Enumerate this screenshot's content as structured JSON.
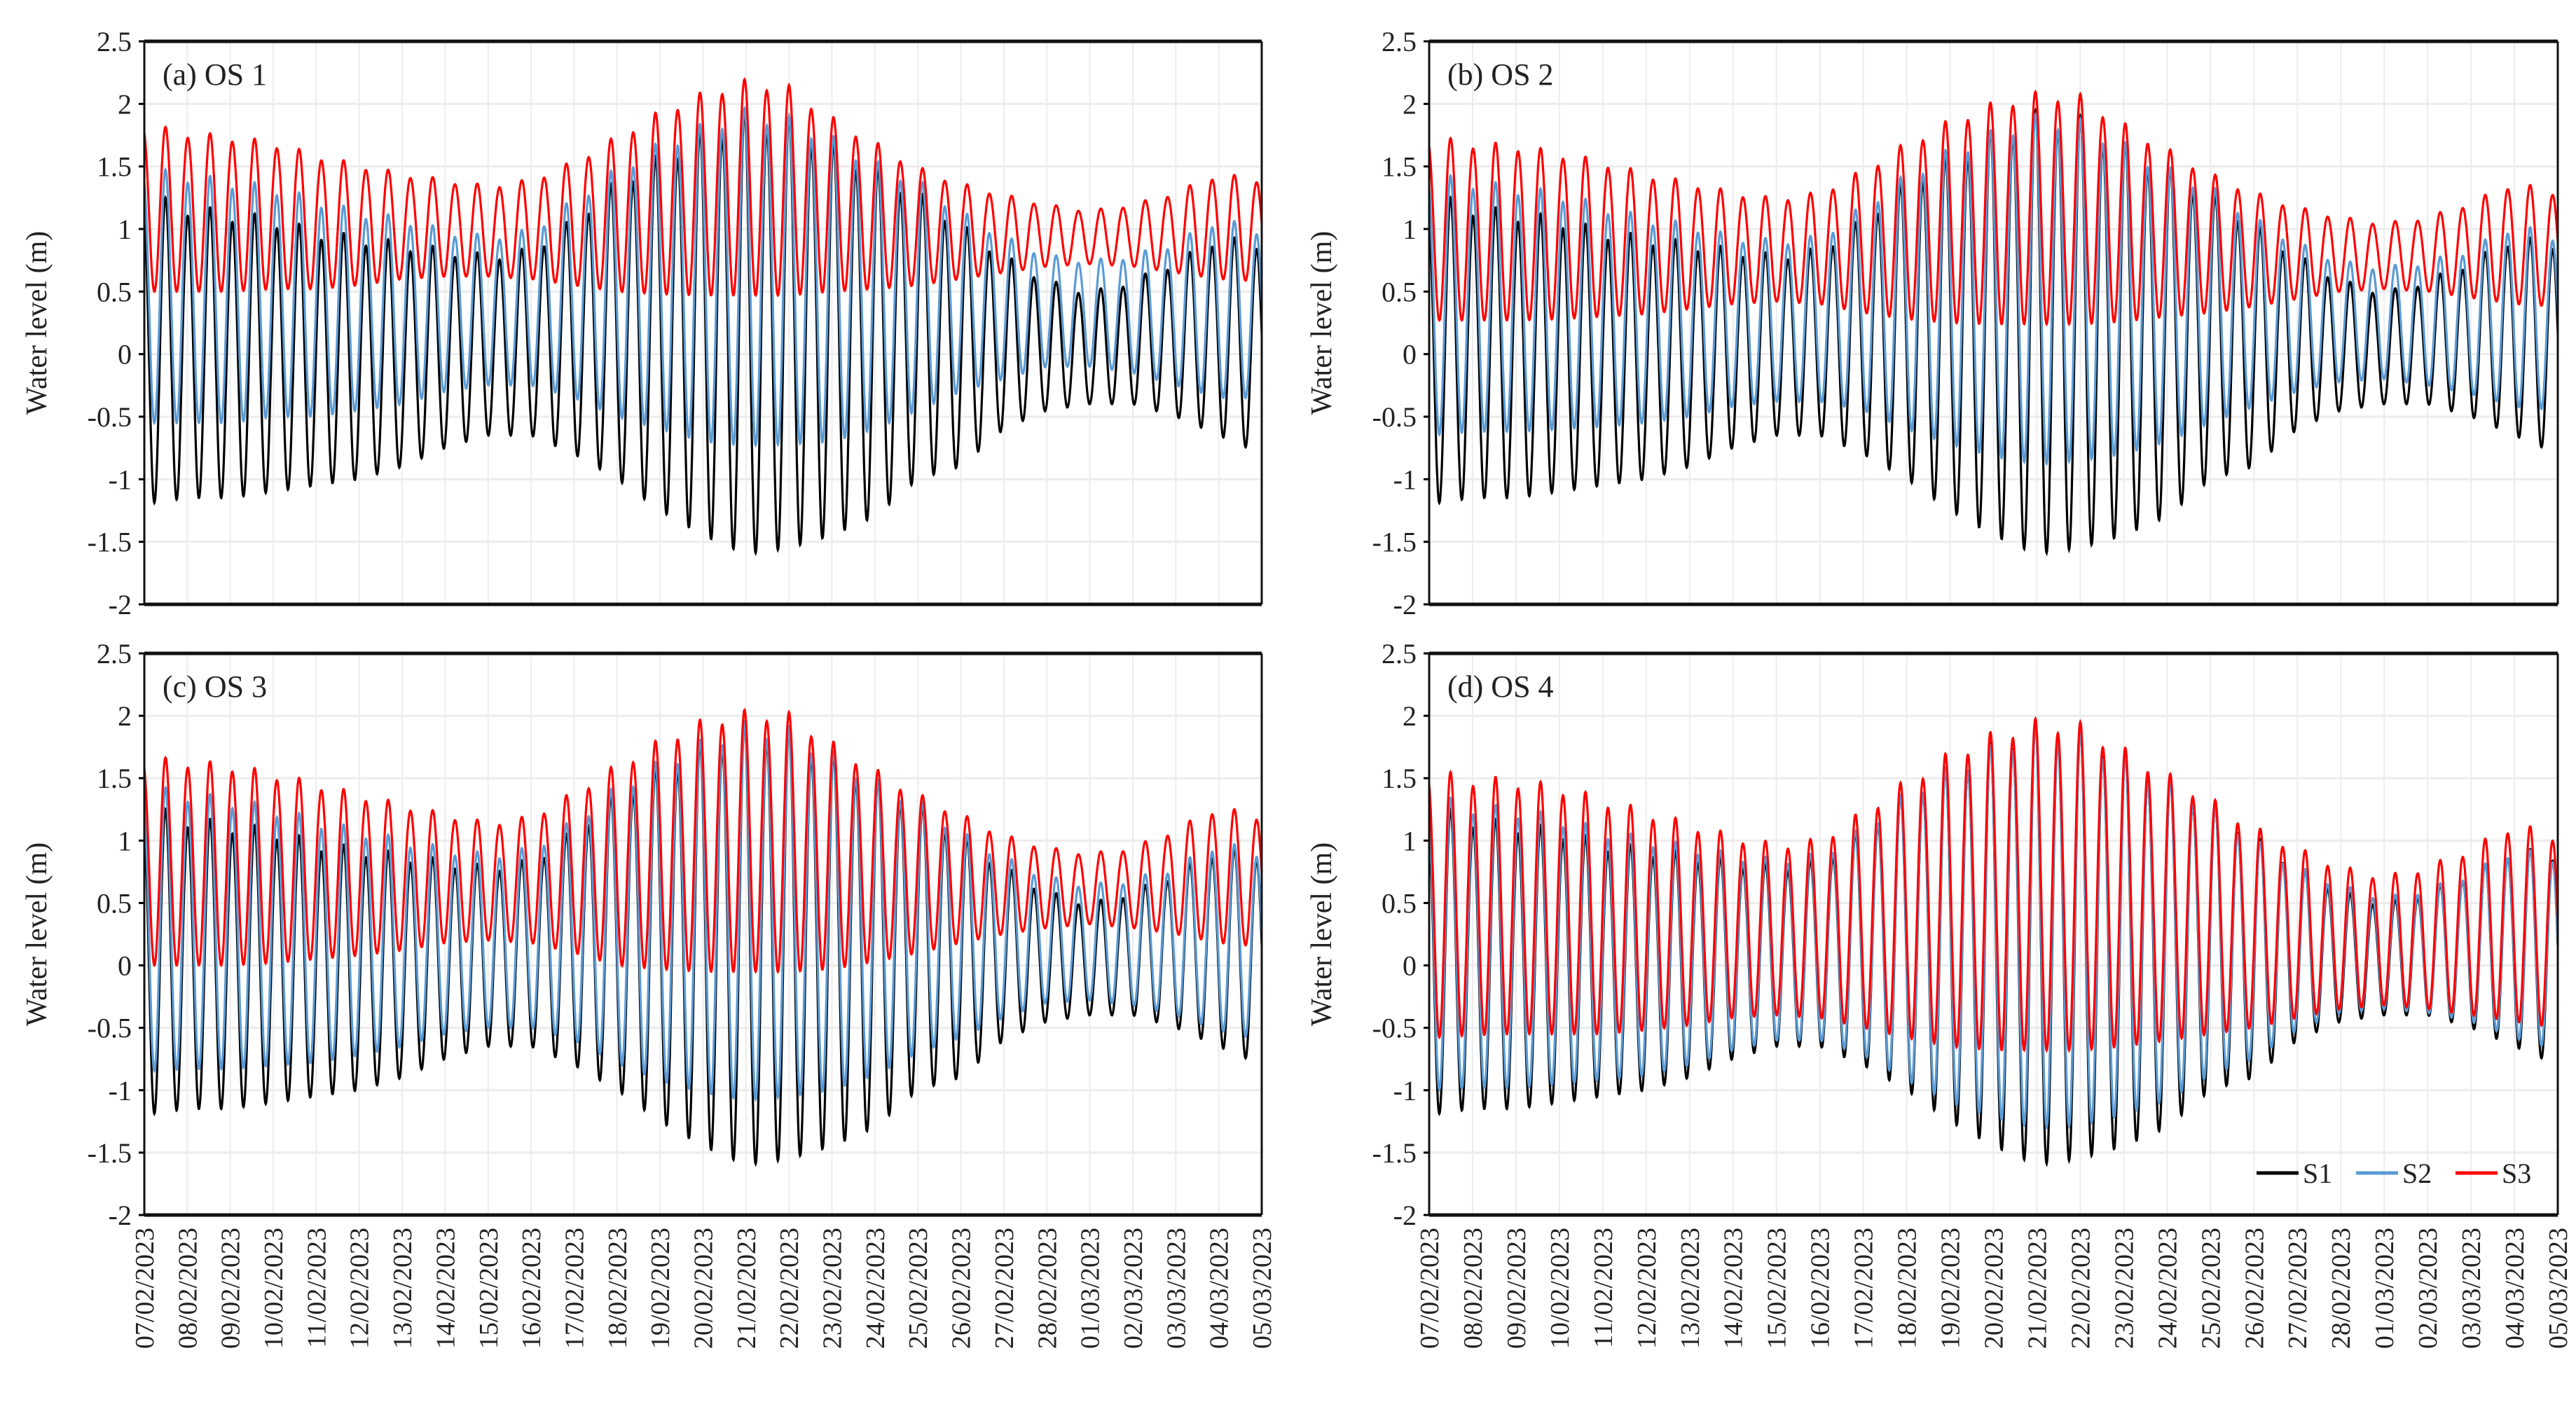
{
  "chart_data": {
    "type": "line",
    "ylabel": "Water level (m)",
    "ylim": [
      -2,
      2.5
    ],
    "yticks": [
      "2.5",
      "2",
      "1.5",
      "1",
      "0.5",
      "0",
      "-0.5",
      "-1",
      "-1.5",
      "-2"
    ],
    "ytick_values": [
      2.5,
      2,
      1.5,
      1,
      0.5,
      0,
      -0.5,
      -1,
      -1.5,
      -2
    ],
    "x_tick_labels": [
      "07/02/2023",
      "08/02/2023",
      "09/02/2023",
      "10/02/2023",
      "11/02/2023",
      "12/02/2023",
      "13/02/2023",
      "14/02/2023",
      "15/02/2023",
      "16/02/2023",
      "17/02/2023",
      "18/02/2023",
      "19/02/2023",
      "20/02/2023",
      "21/02/2023",
      "22/02/2023",
      "23/02/2023",
      "24/02/2023",
      "25/02/2023",
      "26/02/2023",
      "27/02/2023",
      "28/02/2023",
      "01/03/2023",
      "02/03/2023",
      "03/03/2023",
      "04/03/2023",
      "05/03/2023"
    ],
    "tide_cycles_per_day": 1.93,
    "legend": {
      "placement": "bottom-right",
      "panel": 3
    },
    "series_meta": [
      {
        "name": "S1",
        "color": "#000000"
      },
      {
        "name": "S2",
        "color": "#5b9bd5"
      },
      {
        "name": "S3",
        "color": "#ff0000"
      }
    ],
    "panels": [
      {
        "title": "(a) OS 1",
        "series": [
          {
            "name": "S1",
            "highs": [
              1.3,
              1.2,
              1.15,
              1.1,
              1.0,
              0.95,
              0.9,
              0.85,
              0.8,
              0.85,
              1.1,
              1.4,
              1.6,
              1.8,
              1.95,
              1.9,
              1.7,
              1.5,
              1.3,
              1.05,
              0.8,
              0.6,
              0.5,
              0.6,
              0.75,
              0.95,
              0.9
            ],
            "lows": [
              -1.2,
              -1.15,
              -1.15,
              -1.1,
              -1.05,
              -1.0,
              -0.9,
              -0.75,
              -0.65,
              -0.65,
              -0.8,
              -1.0,
              -1.25,
              -1.45,
              -1.6,
              -1.55,
              -1.45,
              -1.3,
              -1.0,
              -0.9,
              -0.6,
              -0.45,
              -0.4,
              -0.4,
              -0.5,
              -0.65,
              -0.8
            ]
          },
          {
            "name": "S2",
            "highs": [
              1.5,
              1.45,
              1.4,
              1.35,
              1.25,
              1.15,
              1.1,
              1.0,
              0.95,
              1.0,
              1.25,
              1.5,
              1.7,
              1.85,
              1.97,
              1.9,
              1.75,
              1.55,
              1.4,
              1.15,
              0.95,
              0.8,
              0.75,
              0.8,
              0.9,
              1.1,
              1.0
            ],
            "lows": [
              -0.55,
              -0.55,
              -0.55,
              -0.5,
              -0.5,
              -0.45,
              -0.4,
              -0.3,
              -0.25,
              -0.25,
              -0.35,
              -0.5,
              -0.6,
              -0.7,
              -0.73,
              -0.72,
              -0.7,
              -0.6,
              -0.45,
              -0.3,
              -0.2,
              -0.1,
              -0.1,
              -0.15,
              -0.25,
              -0.35,
              -0.35
            ]
          },
          {
            "name": "S3",
            "highs": [
              1.85,
              1.78,
              1.75,
              1.7,
              1.6,
              1.52,
              1.45,
              1.4,
              1.35,
              1.4,
              1.55,
              1.75,
              1.95,
              2.1,
              2.2,
              2.15,
              1.9,
              1.7,
              1.5,
              1.37,
              1.28,
              1.2,
              1.15,
              1.2,
              1.3,
              1.45,
              1.4
            ],
            "lows": [
              0.5,
              0.5,
              0.5,
              0.52,
              0.52,
              0.55,
              0.6,
              0.62,
              0.62,
              0.6,
              0.55,
              0.5,
              0.48,
              0.47,
              0.47,
              0.47,
              0.5,
              0.52,
              0.55,
              0.6,
              0.65,
              0.7,
              0.72,
              0.7,
              0.65,
              0.6,
              0.58
            ]
          }
        ]
      },
      {
        "title": "(b) OS 2",
        "series": [
          {
            "name": "S1",
            "highs": [
              1.3,
              1.2,
              1.15,
              1.1,
              1.0,
              0.95,
              0.9,
              0.85,
              0.8,
              0.85,
              1.1,
              1.4,
              1.6,
              1.8,
              1.95,
              1.9,
              1.7,
              1.5,
              1.3,
              1.05,
              0.8,
              0.6,
              0.5,
              0.6,
              0.75,
              0.95,
              0.9
            ],
            "lows": [
              -1.2,
              -1.15,
              -1.15,
              -1.1,
              -1.05,
              -1.0,
              -0.9,
              -0.75,
              -0.65,
              -0.65,
              -0.8,
              -1.0,
              -1.25,
              -1.45,
              -1.6,
              -1.55,
              -1.45,
              -1.3,
              -1.0,
              -0.9,
              -0.6,
              -0.45,
              -0.4,
              -0.4,
              -0.5,
              -0.65,
              -0.8
            ]
          },
          {
            "name": "S2",
            "highs": [
              1.45,
              1.4,
              1.35,
              1.3,
              1.2,
              1.1,
              1.05,
              0.95,
              0.92,
              0.95,
              1.2,
              1.45,
              1.65,
              1.8,
              1.92,
              1.88,
              1.7,
              1.5,
              1.35,
              1.1,
              0.9,
              0.75,
              0.7,
              0.75,
              0.85,
              1.05,
              0.95
            ],
            "lows": [
              -0.65,
              -0.62,
              -0.62,
              -0.6,
              -0.58,
              -0.55,
              -0.5,
              -0.42,
              -0.38,
              -0.38,
              -0.45,
              -0.6,
              -0.72,
              -0.82,
              -0.88,
              -0.85,
              -0.8,
              -0.7,
              -0.55,
              -0.42,
              -0.3,
              -0.22,
              -0.2,
              -0.25,
              -0.32,
              -0.42,
              -0.45
            ]
          },
          {
            "name": "S3",
            "highs": [
              1.75,
              1.7,
              1.68,
              1.62,
              1.55,
              1.45,
              1.38,
              1.3,
              1.25,
              1.3,
              1.48,
              1.7,
              1.88,
              2.02,
              2.1,
              2.08,
              1.85,
              1.65,
              1.45,
              1.3,
              1.18,
              1.1,
              1.05,
              1.1,
              1.22,
              1.38,
              1.3
            ],
            "lows": [
              0.27,
              0.27,
              0.27,
              0.28,
              0.3,
              0.32,
              0.36,
              0.4,
              0.42,
              0.4,
              0.33,
              0.28,
              0.25,
              0.24,
              0.24,
              0.24,
              0.26,
              0.3,
              0.33,
              0.38,
              0.44,
              0.5,
              0.52,
              0.5,
              0.45,
              0.4,
              0.38
            ]
          }
        ]
      },
      {
        "title": "(c) OS 3",
        "series": [
          {
            "name": "S1",
            "highs": [
              1.3,
              1.2,
              1.15,
              1.1,
              1.0,
              0.95,
              0.9,
              0.85,
              0.8,
              0.85,
              1.1,
              1.4,
              1.6,
              1.8,
              1.95,
              1.9,
              1.7,
              1.5,
              1.3,
              1.05,
              0.8,
              0.6,
              0.5,
              0.6,
              0.75,
              0.95,
              0.9
            ],
            "lows": [
              -1.2,
              -1.15,
              -1.15,
              -1.1,
              -1.05,
              -1.0,
              -0.9,
              -0.75,
              -0.65,
              -0.65,
              -0.8,
              -1.0,
              -1.25,
              -1.45,
              -1.6,
              -1.55,
              -1.45,
              -1.3,
              -1.0,
              -0.9,
              -0.6,
              -0.45,
              -0.4,
              -0.4,
              -0.5,
              -0.65,
              -0.8
            ]
          },
          {
            "name": "S2",
            "highs": [
              1.45,
              1.4,
              1.35,
              1.28,
              1.18,
              1.1,
              1.02,
              0.95,
              0.9,
              0.95,
              1.18,
              1.45,
              1.65,
              1.82,
              1.95,
              1.9,
              1.72,
              1.5,
              1.33,
              1.08,
              0.88,
              0.72,
              0.65,
              0.7,
              0.8,
              1.0,
              0.92
            ],
            "lows": [
              -0.85,
              -0.83,
              -0.83,
              -0.8,
              -0.78,
              -0.72,
              -0.65,
              -0.55,
              -0.5,
              -0.5,
              -0.6,
              -0.78,
              -0.92,
              -1.02,
              -1.08,
              -1.05,
              -1.0,
              -0.88,
              -0.7,
              -0.58,
              -0.42,
              -0.3,
              -0.28,
              -0.32,
              -0.4,
              -0.52,
              -0.6
            ]
          },
          {
            "name": "S3",
            "highs": [
              1.68,
              1.65,
              1.62,
              1.55,
              1.47,
              1.38,
              1.3,
              1.22,
              1.15,
              1.2,
              1.4,
              1.62,
              1.82,
              1.98,
              2.05,
              2.03,
              1.8,
              1.58,
              1.38,
              1.22,
              1.05,
              0.95,
              0.9,
              0.95,
              1.1,
              1.28,
              1.2
            ],
            "lows": [
              0.0,
              0.0,
              0.0,
              0.02,
              0.05,
              0.08,
              0.12,
              0.18,
              0.2,
              0.18,
              0.1,
              0.0,
              -0.03,
              -0.05,
              -0.05,
              -0.05,
              -0.03,
              0.03,
              0.1,
              0.18,
              0.25,
              0.3,
              0.33,
              0.3,
              0.25,
              0.18,
              0.15
            ]
          }
        ]
      },
      {
        "title": "(d) OS 4",
        "series": [
          {
            "name": "S1",
            "highs": [
              1.3,
              1.2,
              1.15,
              1.1,
              1.0,
              0.95,
              0.9,
              0.85,
              0.8,
              0.85,
              1.1,
              1.4,
              1.6,
              1.8,
              1.95,
              1.9,
              1.7,
              1.5,
              1.3,
              1.05,
              0.8,
              0.6,
              0.5,
              0.6,
              0.75,
              0.95,
              0.9
            ],
            "lows": [
              -1.2,
              -1.15,
              -1.15,
              -1.1,
              -1.05,
              -1.0,
              -0.9,
              -0.75,
              -0.65,
              -0.65,
              -0.8,
              -1.0,
              -1.25,
              -1.45,
              -1.6,
              -1.55,
              -1.45,
              -1.3,
              -1.0,
              -0.9,
              -0.6,
              -0.45,
              -0.4,
              -0.4,
              -0.5,
              -0.65,
              -0.8
            ]
          },
          {
            "name": "S2",
            "highs": [
              1.38,
              1.3,
              1.27,
              1.2,
              1.1,
              1.03,
              0.97,
              0.9,
              0.86,
              0.9,
              1.12,
              1.4,
              1.6,
              1.78,
              1.92,
              1.87,
              1.68,
              1.48,
              1.3,
              1.02,
              0.8,
              0.65,
              0.55,
              0.62,
              0.75,
              0.95,
              0.88
            ],
            "lows": [
              -1.0,
              -0.98,
              -0.98,
              -0.95,
              -0.92,
              -0.88,
              -0.8,
              -0.68,
              -0.6,
              -0.6,
              -0.72,
              -0.92,
              -1.1,
              -1.22,
              -1.3,
              -1.28,
              -1.2,
              -1.08,
              -0.88,
              -0.75,
              -0.52,
              -0.38,
              -0.35,
              -0.38,
              -0.45,
              -0.58,
              -0.68
            ]
          },
          {
            "name": "S3",
            "highs": [
              1.58,
              1.52,
              1.5,
              1.45,
              1.35,
              1.25,
              1.15,
              1.05,
              0.98,
              1.02,
              1.25,
              1.5,
              1.72,
              1.88,
              1.98,
              1.95,
              1.75,
              1.55,
              1.35,
              1.12,
              0.95,
              0.8,
              0.72,
              0.8,
              0.95,
              1.15,
              1.05
            ],
            "lows": [
              -0.58,
              -0.56,
              -0.55,
              -0.55,
              -0.55,
              -0.52,
              -0.48,
              -0.42,
              -0.4,
              -0.42,
              -0.5,
              -0.58,
              -0.65,
              -0.68,
              -0.68,
              -0.68,
              -0.65,
              -0.6,
              -0.55,
              -0.5,
              -0.42,
              -0.35,
              -0.32,
              -0.35,
              -0.4,
              -0.45,
              -0.5
            ]
          }
        ]
      }
    ]
  }
}
